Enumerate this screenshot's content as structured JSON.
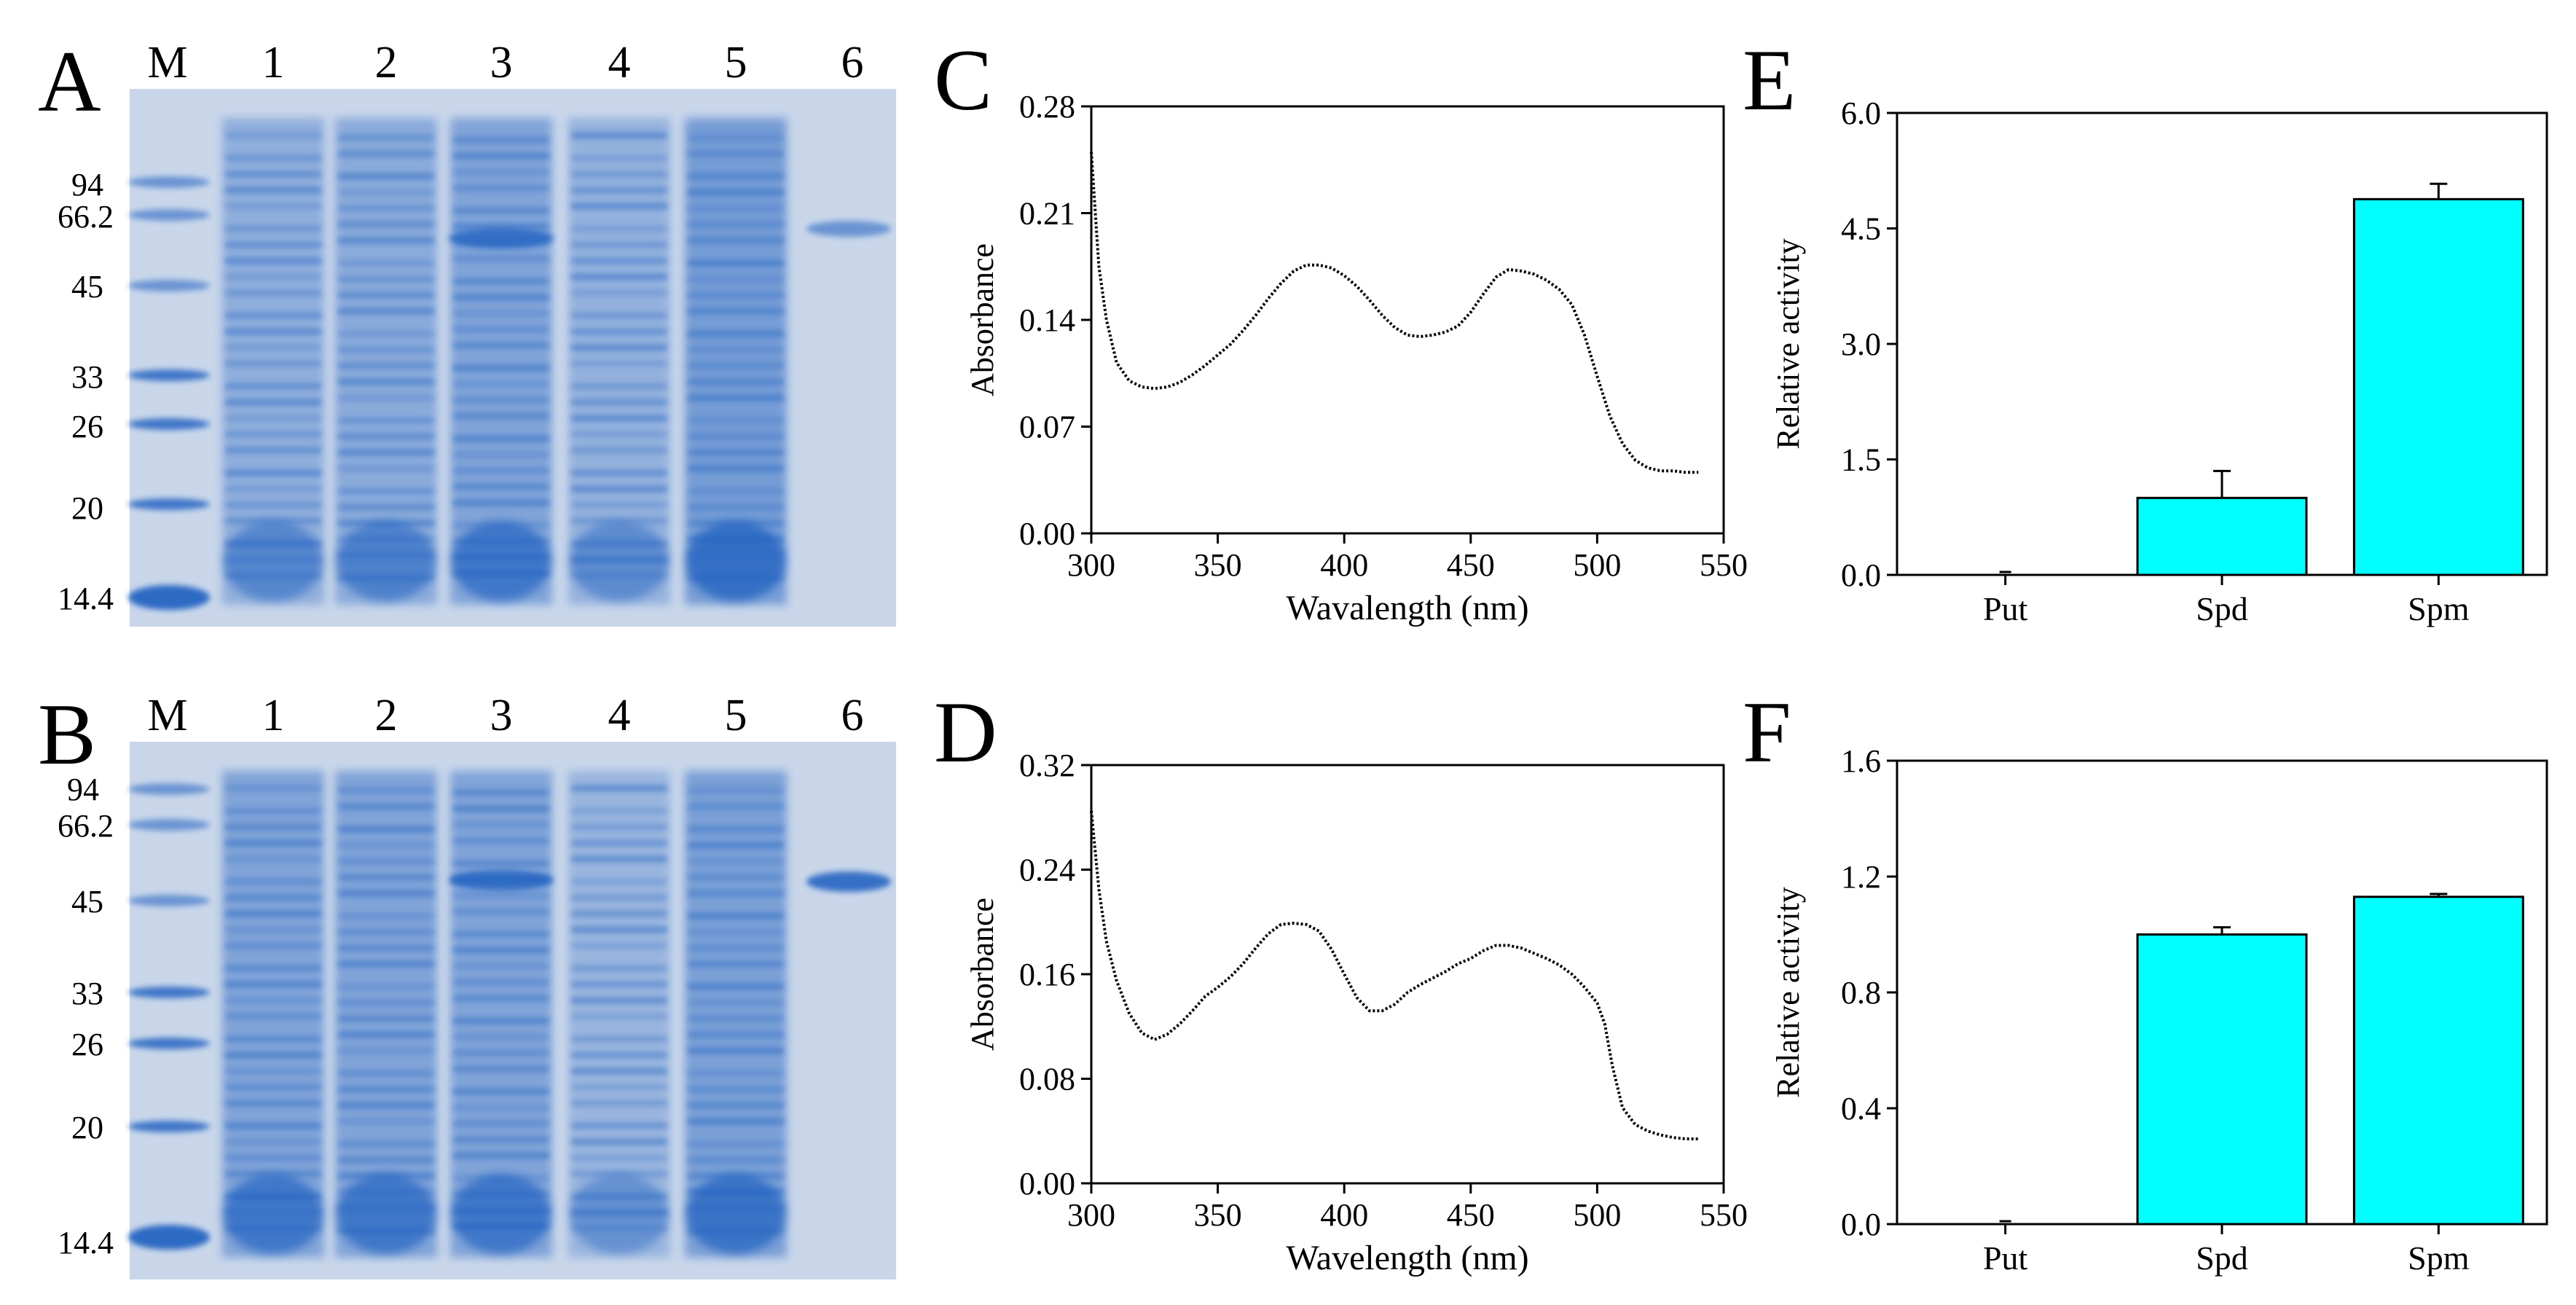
{
  "panels": {
    "A": "A",
    "B": "B",
    "C": "C",
    "D": "D",
    "E": "E",
    "F": "F"
  },
  "gels": [
    {
      "lane_labels": [
        "M",
        "1",
        "2",
        "3",
        "4",
        "5",
        "6"
      ],
      "marker_labels": [
        "94",
        "66.2",
        "45",
        "33",
        "26",
        "20",
        "14.4"
      ]
    },
    {
      "lane_labels": [
        "M",
        "1",
        "2",
        "3",
        "4",
        "5",
        "6"
      ],
      "marker_labels": [
        "94",
        "66.2",
        "45",
        "33",
        "26",
        "20",
        "14.4"
      ]
    }
  ],
  "colors": {
    "gel_stain": "#1f5fc0",
    "gel_background": "#c9d6ea",
    "bar_fill": "#00ffff",
    "line": "#000000"
  },
  "chart_data": [
    {
      "panel": "C",
      "type": "line",
      "xlabel": "Wavalength (nm)",
      "ylabel": "Absorbance",
      "xlim": [
        300,
        550
      ],
      "ylim": [
        0.0,
        0.28
      ],
      "xticks": [
        "300",
        "350",
        "400",
        "450",
        "500",
        "550"
      ],
      "yticks": [
        "0.00",
        "0.07",
        "0.14",
        "0.21",
        "0.28"
      ],
      "series": [
        {
          "x": [
            300,
            303,
            306,
            310,
            315,
            320,
            325,
            330,
            335,
            340,
            345,
            350,
            355,
            360,
            365,
            370,
            375,
            380,
            385,
            390,
            395,
            400,
            405,
            410,
            415,
            420,
            425,
            430,
            435,
            440,
            445,
            450,
            455,
            460,
            465,
            470,
            475,
            480,
            485,
            490,
            495,
            500,
            505,
            510,
            515,
            520,
            525,
            530,
            535,
            540
          ],
          "y": [
            0.25,
            0.175,
            0.14,
            0.112,
            0.1,
            0.096,
            0.095,
            0.096,
            0.099,
            0.104,
            0.11,
            0.117,
            0.124,
            0.133,
            0.143,
            0.154,
            0.164,
            0.172,
            0.176,
            0.176,
            0.174,
            0.169,
            0.162,
            0.153,
            0.143,
            0.135,
            0.13,
            0.129,
            0.13,
            0.132,
            0.136,
            0.145,
            0.157,
            0.168,
            0.173,
            0.172,
            0.17,
            0.166,
            0.16,
            0.15,
            0.13,
            0.103,
            0.077,
            0.059,
            0.048,
            0.043,
            0.041,
            0.041,
            0.04,
            0.04
          ]
        }
      ]
    },
    {
      "panel": "D",
      "type": "line",
      "xlabel": "Wavelength (nm)",
      "ylabel": "Absorbance",
      "xlim": [
        300,
        550
      ],
      "ylim": [
        0.0,
        0.32
      ],
      "xticks": [
        "300",
        "350",
        "400",
        "450",
        "500",
        "550"
      ],
      "yticks": [
        "0.00",
        "0.08",
        "0.16",
        "0.24",
        "0.32"
      ],
      "series": [
        {
          "x": [
            300,
            303,
            306,
            310,
            315,
            320,
            325,
            330,
            335,
            340,
            345,
            350,
            355,
            360,
            365,
            370,
            375,
            380,
            385,
            390,
            395,
            400,
            405,
            410,
            415,
            420,
            425,
            430,
            435,
            440,
            445,
            450,
            455,
            460,
            465,
            470,
            475,
            480,
            485,
            490,
            495,
            500,
            503,
            506,
            510,
            515,
            520,
            525,
            530,
            535,
            540
          ],
          "y": [
            0.285,
            0.225,
            0.185,
            0.155,
            0.13,
            0.115,
            0.11,
            0.114,
            0.122,
            0.132,
            0.143,
            0.15,
            0.158,
            0.168,
            0.18,
            0.191,
            0.198,
            0.199,
            0.198,
            0.193,
            0.179,
            0.16,
            0.142,
            0.132,
            0.132,
            0.137,
            0.146,
            0.152,
            0.157,
            0.162,
            0.168,
            0.172,
            0.178,
            0.182,
            0.182,
            0.18,
            0.176,
            0.172,
            0.167,
            0.16,
            0.15,
            0.138,
            0.122,
            0.09,
            0.058,
            0.045,
            0.04,
            0.037,
            0.035,
            0.034,
            0.034
          ]
        }
      ]
    },
    {
      "panel": "E",
      "type": "bar",
      "ylabel": "Relative activity",
      "categories": [
        "Put",
        "Spd",
        "Spm"
      ],
      "values": [
        0.0,
        1.0,
        4.88
      ],
      "errors": [
        0.0,
        0.35,
        0.2
      ],
      "ylim": [
        0.0,
        6.0
      ],
      "yticks": [
        "0.0",
        "1.5",
        "3.0",
        "4.5",
        "6.0"
      ]
    },
    {
      "panel": "F",
      "type": "bar",
      "ylabel": "Relative activity",
      "categories": [
        "Put",
        "Spd",
        "Spm"
      ],
      "values": [
        0.0,
        1.0,
        1.13
      ],
      "errors": [
        0.0,
        0.025,
        0.01
      ],
      "ylim": [
        0.0,
        1.6
      ],
      "yticks": [
        "0.0",
        "0.4",
        "0.8",
        "1.2",
        "1.6"
      ]
    }
  ]
}
